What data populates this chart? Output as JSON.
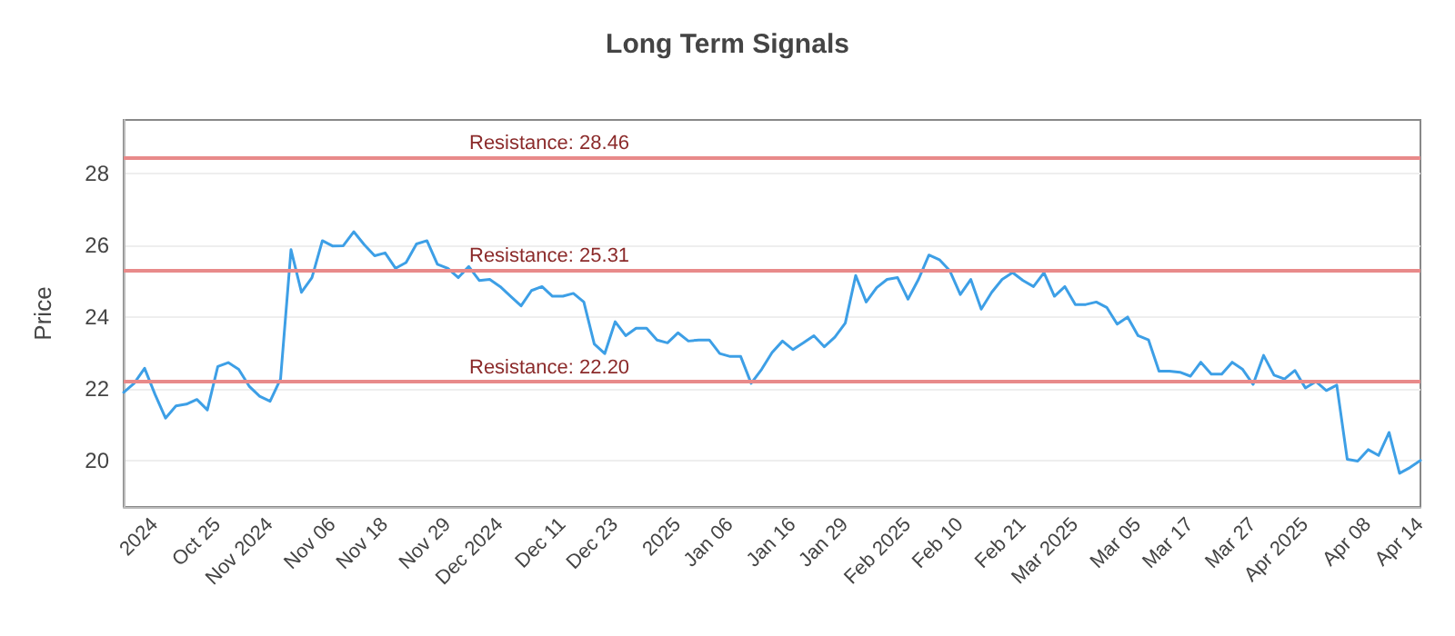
{
  "chart_data": {
    "type": "line",
    "title": "Long Term Signals",
    "ylabel": "Price",
    "categories": [
      null,
      null,
      null,
      "2024",
      null,
      null,
      null,
      null,
      null,
      "Oct 25",
      null,
      null,
      null,
      null,
      "Nov 2024",
      null,
      null,
      null,
      null,
      null,
      "Nov 06",
      null,
      null,
      null,
      null,
      "Nov 18",
      null,
      null,
      null,
      null,
      null,
      "Nov 29",
      null,
      null,
      null,
      null,
      "Dec 2024",
      null,
      null,
      null,
      null,
      null,
      "Dec 11",
      null,
      null,
      null,
      null,
      "Dec 23",
      null,
      null,
      null,
      null,
      null,
      "2025",
      null,
      null,
      null,
      null,
      "Jan 06",
      null,
      null,
      null,
      null,
      null,
      "Jan 16",
      null,
      null,
      null,
      null,
      "Jan 29",
      null,
      null,
      null,
      null,
      null,
      "Feb 2025",
      null,
      null,
      null,
      null,
      "Feb 10",
      null,
      null,
      null,
      null,
      null,
      "Feb 21",
      null,
      null,
      null,
      null,
      "Mar 2025",
      null,
      null,
      null,
      null,
      null,
      "Mar 05",
      null,
      null,
      null,
      null,
      "Mar 17",
      null,
      null,
      null,
      null,
      null,
      "Mar 27",
      null,
      null,
      null,
      null,
      "Apr 2025",
      null,
      null,
      null,
      null,
      null,
      "Apr 08",
      null,
      null,
      null,
      null,
      "Apr 14"
    ],
    "series": [
      {
        "color": "#3d9fe6",
        "values": [
          21.9,
          22.15,
          22.57,
          21.84,
          21.18,
          21.52,
          21.57,
          21.7,
          21.41,
          22.62,
          22.73,
          22.54,
          22.07,
          21.79,
          21.65,
          22.27,
          25.88,
          24.69,
          25.1,
          26.13,
          25.98,
          25.99,
          26.38,
          26.02,
          25.71,
          25.79,
          25.36,
          25.52,
          26.04,
          26.13,
          25.47,
          25.36,
          25.1,
          25.41,
          25.02,
          25.05,
          24.85,
          24.58,
          24.31,
          24.74,
          24.85,
          24.58,
          24.58,
          24.66,
          24.42,
          23.25,
          22.98,
          23.87,
          23.48,
          23.69,
          23.69,
          23.36,
          23.28,
          23.56,
          23.33,
          23.36,
          23.36,
          22.98,
          22.9,
          22.9,
          22.15,
          22.54,
          23.01,
          23.33,
          23.09,
          23.28,
          23.48,
          23.17,
          23.44,
          23.83,
          25.16,
          24.42,
          24.82,
          25.05,
          25.1,
          24.5,
          25.05,
          25.73,
          25.6,
          25.29,
          24.63,
          25.05,
          24.22,
          24.69,
          25.05,
          25.24,
          25.02,
          24.85,
          25.24,
          24.58,
          24.85,
          24.35,
          24.35,
          24.42,
          24.27,
          23.8,
          24.0,
          23.48,
          23.36,
          22.49,
          22.49,
          22.46,
          22.35,
          22.74,
          22.41,
          22.41,
          22.74,
          22.54,
          22.12,
          22.93,
          22.38,
          22.27,
          22.51,
          22.02,
          22.2,
          21.95,
          22.1,
          20.03,
          19.98,
          20.3,
          20.14,
          20.78,
          19.64,
          19.8,
          20.0
        ]
      }
    ],
    "ylim": [
      18.7,
      29.5
    ],
    "yticks": [
      20,
      22,
      24,
      26,
      28
    ],
    "grid": "y",
    "marker": "none",
    "line_style": "solid",
    "ref_lines": [
      {
        "axis": "y",
        "value": 28.46,
        "label": "Resistance: 28.46",
        "color": "#e88a8a"
      },
      {
        "axis": "y",
        "value": 25.31,
        "label": "Resistance: 25.31",
        "color": "#e88a8a"
      },
      {
        "axis": "y",
        "value": 22.2,
        "label": "Resistance: 22.20",
        "color": "#e88a8a"
      }
    ]
  }
}
